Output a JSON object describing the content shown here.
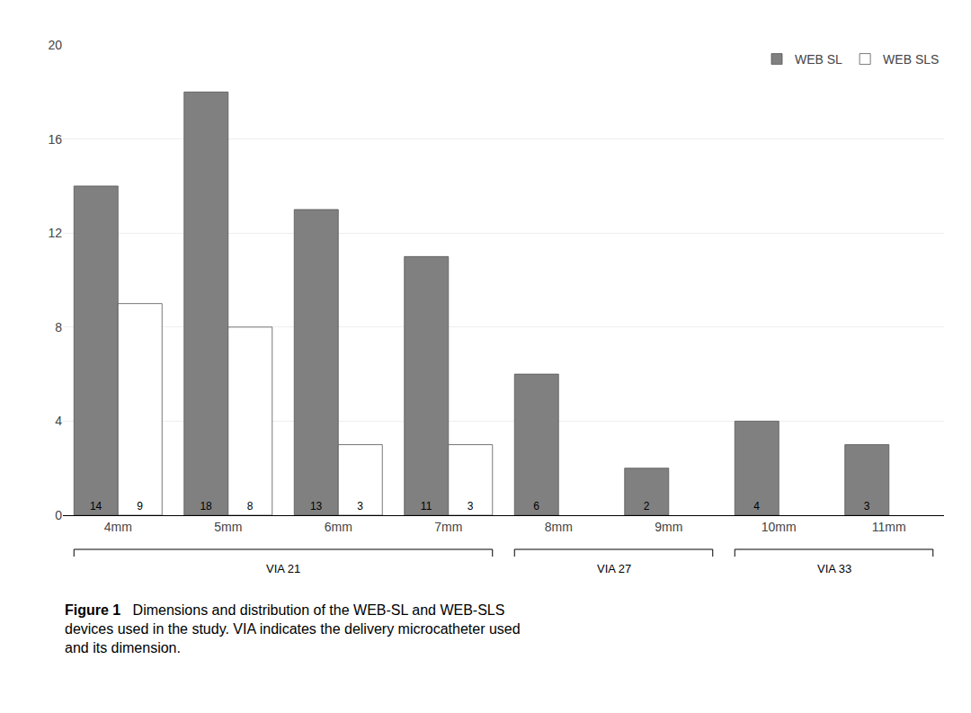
{
  "chart_data": {
    "type": "bar",
    "categories": [
      "4mm",
      "5mm",
      "6mm",
      "7mm",
      "8mm",
      "9mm",
      "10mm",
      "11mm"
    ],
    "series": [
      {
        "name": "WEB SL",
        "color": "#808080",
        "values": [
          14,
          18,
          13,
          11,
          6,
          2,
          4,
          3
        ]
      },
      {
        "name": "WEB SLS",
        "color": "#ffffff",
        "values": [
          9,
          8,
          3,
          3,
          0,
          0,
          0,
          0
        ]
      }
    ],
    "ylim": [
      0,
      20
    ],
    "yticks": [
      0,
      4,
      8,
      12,
      16,
      20
    ],
    "grid": true,
    "legend": "upper right",
    "data_labels": true,
    "annotations": [
      {
        "text": "VIA 21",
        "from": "4mm",
        "to": "7mm"
      },
      {
        "text": "VIA 27",
        "from": "8mm",
        "to": "9mm"
      },
      {
        "text": "VIA 33",
        "from": "10mm",
        "to": "11mm"
      }
    ],
    "caption": {
      "label": "Figure 1",
      "text": "Dimensions and distribution of the WEB-SL and WEB-SLS\ndevices used in the study. VIA indicates the delivery microcatheter used\nand its dimension."
    }
  }
}
